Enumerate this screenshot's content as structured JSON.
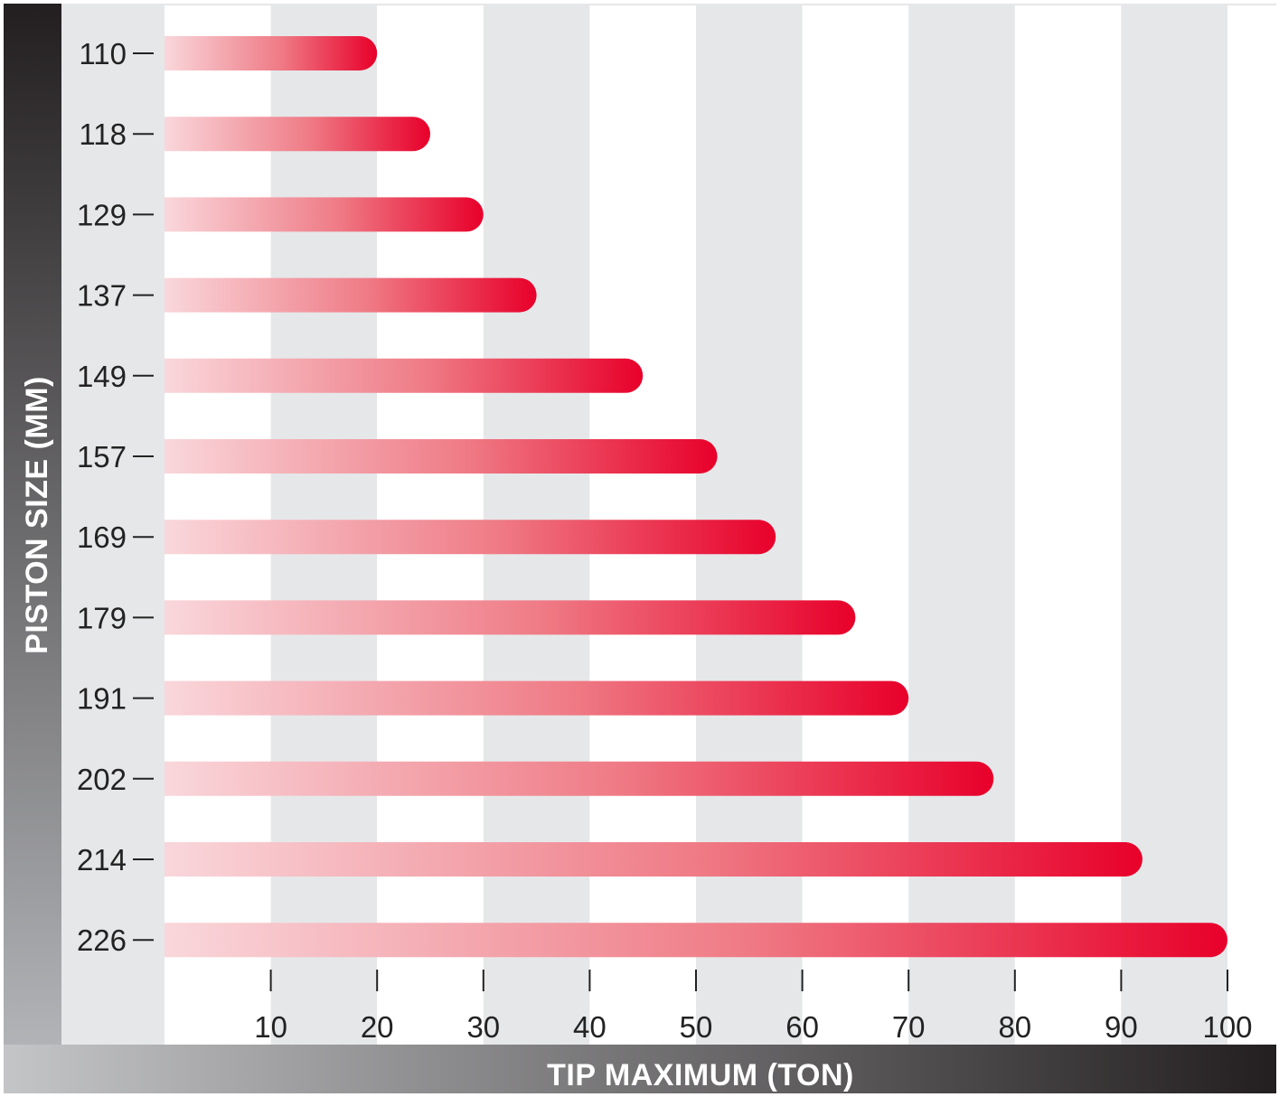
{
  "chart_data": {
    "type": "bar",
    "orientation": "horizontal",
    "categories": [
      "110",
      "118",
      "129",
      "137",
      "149",
      "157",
      "169",
      "179",
      "191",
      "202",
      "214",
      "226"
    ],
    "values": [
      20,
      25,
      30,
      35,
      45,
      52,
      57.5,
      65,
      70,
      78,
      92,
      100
    ],
    "x_ticks": [
      "10",
      "20",
      "30",
      "40",
      "50",
      "60",
      "70",
      "80",
      "90",
      "100"
    ],
    "xlim": [
      0,
      100
    ],
    "xlabel": "TIP MAXIMUM (TON)",
    "ylabel": "PISTON SIZE (MM)",
    "grid": "alternating vertical bands",
    "colors": {
      "bar_start": "#f9d7db",
      "bar_end": "#e8002a",
      "band_gray": "#e6e7e9",
      "axis_dark": "#231f20",
      "axis_light": "#b1b3b6"
    }
  }
}
